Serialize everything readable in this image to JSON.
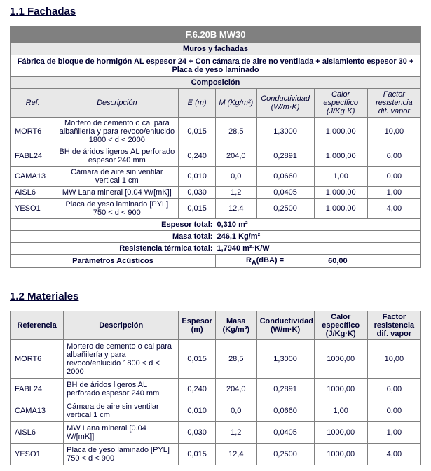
{
  "section1": {
    "heading": "1.1 Fachadas",
    "titleBar": "F.6.20B MW30",
    "subtitle": "Muros y fachadas",
    "longDesc": "Fábrica de bloque de hormigón AL espesor 24 + Con cámara de aire no ventilada + aislamiento espesor 30 + Placa de yeso laminado",
    "compHeader": "Composición",
    "cols": {
      "ref": "Ref.",
      "desc": "Descripción",
      "e": "E (m)",
      "m": "M (Kg/m²)",
      "cond": "Conductividad (W/m·K)",
      "calor": "Calor específico (J/Kg·K)",
      "factor": "Factor resistencia dif. vapor"
    },
    "rows": [
      {
        "ref": "MORT6",
        "desc": "Mortero de cemento o cal para albañilería y para revoco/enlucido 1800 < d < 2000",
        "e": "0,015",
        "m": "28,5",
        "cond": "1,3000",
        "calor": "1.000,00",
        "factor": "10,00"
      },
      {
        "ref": "FABL24",
        "desc": "BH de áridos ligeros AL perforado espesor 240 mm",
        "e": "0,240",
        "m": "204,0",
        "cond": "0,2891",
        "calor": "1.000,00",
        "factor": "6,00"
      },
      {
        "ref": "CAMA13",
        "desc": "Cámara de aire sin ventilar vertical 1 cm",
        "e": "0,010",
        "m": "0,0",
        "cond": "0,0660",
        "calor": "1,00",
        "factor": "0,00"
      },
      {
        "ref": "AISL6",
        "desc": "MW Lana mineral [0.04 W/[mK]]",
        "e": "0,030",
        "m": "1,2",
        "cond": "0,0405",
        "calor": "1.000,00",
        "factor": "1,00"
      },
      {
        "ref": "YESO1",
        "desc": "Placa de yeso laminado [PYL] 750 < d < 900",
        "e": "0,015",
        "m": "12,4",
        "cond": "0,2500",
        "calor": "1.000,00",
        "factor": "4,00"
      }
    ],
    "summary": {
      "espesorLabel": "Espesor total:",
      "espesorVal": "0,310 m²",
      "masaLabel": "Masa total:",
      "masaVal": "246,1 Kg/m²",
      "resistLabel": "Resistencia térmica total:",
      "resistVal": "1,7940 m²·K/W"
    },
    "param": {
      "label": "Parámetros Acústicos",
      "raLabel": "R",
      "raSub": "A",
      "raUnit": "(dBA) =",
      "raVal": "60,00"
    }
  },
  "section2": {
    "heading": "1.2 Materiales",
    "cols": {
      "ref": "Referencia",
      "desc": "Descripción",
      "e": "Espesor (m)",
      "m": "Masa (Kg/m²)",
      "cond": "Conductividad (W/m·K)",
      "calor": "Calor específico (J/Kg·K)",
      "factor": "Factor resistencia dif. vapor"
    },
    "rows": [
      {
        "ref": "MORT6",
        "desc": "Mortero de cemento o cal para albañilería y para revoco/enlucido 1800 < d < 2000",
        "e": "0,015",
        "m": "28,5",
        "cond": "1,3000",
        "calor": "1000,00",
        "factor": "10,00"
      },
      {
        "ref": "FABL24",
        "desc": "BH de áridos ligeros AL perforado espesor 240 mm",
        "e": "0,240",
        "m": "204,0",
        "cond": "0,2891",
        "calor": "1000,00",
        "factor": "6,00"
      },
      {
        "ref": "CAMA13",
        "desc": "Cámara de aire sin ventilar vertical 1 cm",
        "e": "0,010",
        "m": "0,0",
        "cond": "0,0660",
        "calor": "1,00",
        "factor": "0,00"
      },
      {
        "ref": "AISL6",
        "desc": "MW Lana mineral [0.04 W/[mK]]",
        "e": "0,030",
        "m": "1,2",
        "cond": "0,0405",
        "calor": "1000,00",
        "factor": "1,00"
      },
      {
        "ref": "YESO1",
        "desc": "Placa de yeso laminado [PYL] 750 < d < 900",
        "e": "0,015",
        "m": "12,4",
        "cond": "0,2500",
        "calor": "1000,00",
        "factor": "4,00"
      }
    ]
  }
}
